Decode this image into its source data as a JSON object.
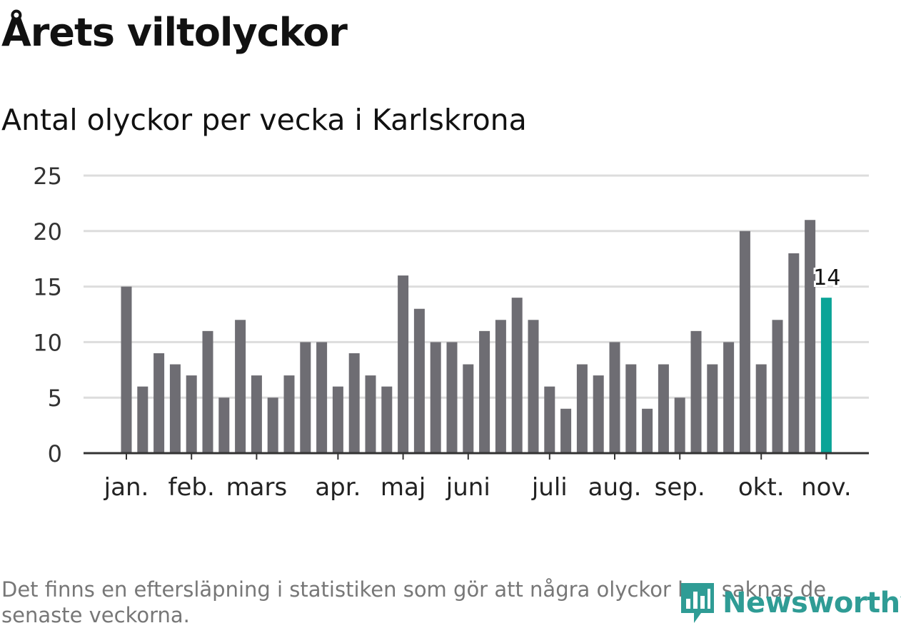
{
  "title": "Årets viltolyckor",
  "subtitle": "Antal olyckor per vecka i Karlskrona",
  "footnote": "Det finns en eftersläpning i statistiken som gör att några olyckor kan saknas de senaste veckorna.",
  "brand": {
    "name": "Newsworthy",
    "icon": "newsworthy-logo-icon"
  },
  "colors": {
    "bar": "#6e6d73",
    "highlight": "#0aa497",
    "grid": "#dddddd",
    "axis": "#333333",
    "brand": "#2f9c95"
  },
  "chart_data": {
    "type": "bar",
    "title": "Årets viltolyckor",
    "subtitle": "Antal olyckor per vecka i Karlskrona",
    "xlabel": "",
    "ylabel": "",
    "ylim": [
      0,
      25
    ],
    "yticks": [
      0,
      5,
      10,
      15,
      20,
      25
    ],
    "grid": true,
    "values": [
      15,
      6,
      9,
      8,
      7,
      11,
      5,
      12,
      7,
      5,
      7,
      10,
      10,
      6,
      9,
      7,
      6,
      16,
      13,
      10,
      10,
      8,
      11,
      12,
      14,
      12,
      6,
      4,
      8,
      7,
      10,
      8,
      4,
      8,
      5,
      11,
      8,
      10,
      20,
      8,
      12,
      18,
      21,
      14
    ],
    "month_labels": [
      {
        "label": "jan.",
        "index": 0
      },
      {
        "label": "feb.",
        "index": 4
      },
      {
        "label": "mars",
        "index": 8
      },
      {
        "label": "apr.",
        "index": 13
      },
      {
        "label": "maj",
        "index": 17
      },
      {
        "label": "juni",
        "index": 21
      },
      {
        "label": "juli",
        "index": 26
      },
      {
        "label": "aug.",
        "index": 30
      },
      {
        "label": "sep.",
        "index": 34
      },
      {
        "label": "okt.",
        "index": 39
      },
      {
        "label": "nov.",
        "index": 43
      }
    ],
    "highlight": {
      "index": 43,
      "label": "14"
    }
  }
}
